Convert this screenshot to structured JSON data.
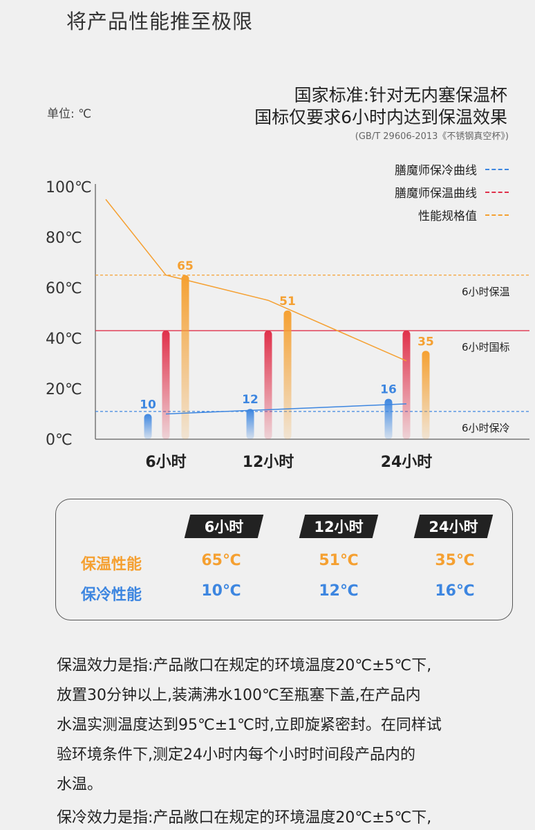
{
  "page_title": "将产品性能推至极限",
  "standard": {
    "line1": "国家标准:针对无内塞保温杯",
    "line2": "国标仅要求6小时内达到保温效果",
    "reference": "(GB/T 29606-2013《不锈钢真空杯》)"
  },
  "unit_label": "单位: ℃",
  "legend": [
    {
      "label": "膳魔师保冷曲线",
      "color": "#3d86e0"
    },
    {
      "label": "膳魔师保温曲线",
      "color": "#e0304a"
    },
    {
      "label": "性能规格值",
      "color": "#f5a031"
    }
  ],
  "chart_data": {
    "type": "bar",
    "categories": [
      "6小时",
      "12小时",
      "24小时"
    ],
    "x_hours": [
      6,
      12,
      24
    ],
    "series": [
      {
        "name": "膳魔师保冷曲线",
        "values": [
          10,
          12,
          16
        ],
        "color": "#3d86e0"
      },
      {
        "values": [
          43,
          43,
          43
        ],
        "color": "#e0304a"
      },
      {
        "name": "性能规格值",
        "values": [
          65,
          51,
          35
        ],
        "color": "#f5a031"
      }
    ],
    "warm_curve": {
      "x": [
        0,
        6,
        12,
        24
      ],
      "y": [
        95,
        65,
        55,
        31
      ]
    },
    "cold_curve": {
      "x": [
        6,
        24
      ],
      "y": [
        10,
        14
      ]
    },
    "reference_lines": [
      {
        "label": "6小时保温",
        "value": 65,
        "color": "#f5a031"
      },
      {
        "label": "6小时国标",
        "value": 43,
        "color": "#e0304a"
      },
      {
        "label": "6小时保冷",
        "value": 11,
        "color": "#3d86e0"
      }
    ],
    "y_ticks": [
      "0℃",
      "20℃",
      "40℃",
      "60℃",
      "80℃",
      "100℃"
    ],
    "ylim": [
      0,
      100
    ]
  },
  "table": {
    "headers": [
      "6小时",
      "12小时",
      "24小时"
    ],
    "rows": [
      {
        "label": "保温性能",
        "values": [
          "65℃",
          "51℃",
          "35℃"
        ]
      },
      {
        "label": "保冷性能",
        "values": [
          "10℃",
          "12℃",
          "16℃"
        ]
      }
    ]
  },
  "paragraphs": {
    "p1": [
      "保温效力是指:产品敞口在规定的环境温度20℃±5℃下,",
      "放置30分钟以上,装满沸水100℃至瓶塞下盖,在产品内",
      "水温实测温度达到95℃±1℃时,立即旋紧密封。在同样试",
      "验环境条件下,测定24小时内每个小时时间段产品内的",
      "水温。"
    ],
    "p2": [
      "保冷效力是指:产品敞口在规定的环境温度20℃±5℃下,"
    ]
  }
}
